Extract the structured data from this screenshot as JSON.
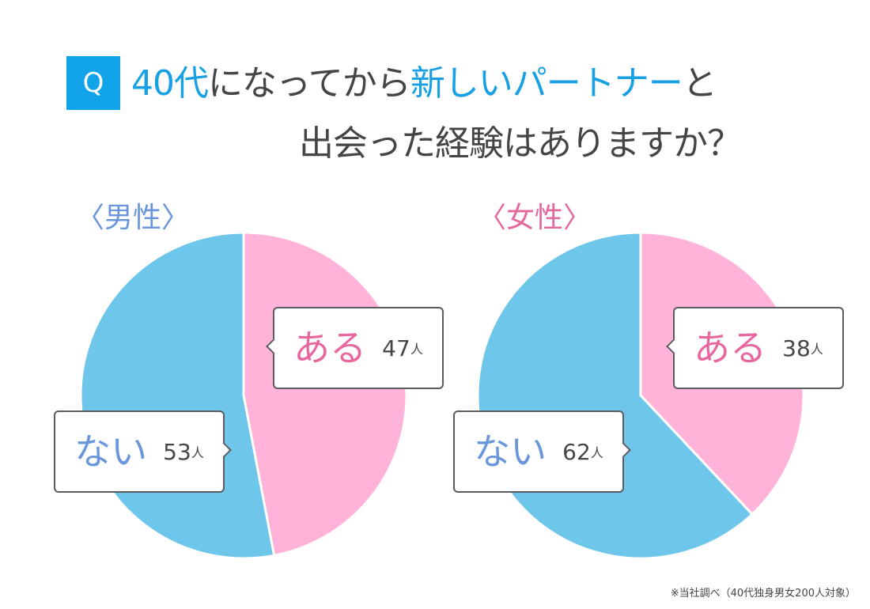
{
  "question": {
    "badge": "Q",
    "line1_parts": [
      {
        "text": "40代",
        "highlight": true
      },
      {
        "text": "になってから",
        "highlight": false
      },
      {
        "text": "新しいパートナー",
        "highlight": true
      },
      {
        "text": "と",
        "highlight": false
      }
    ],
    "line2": "出会った経験はありますか？"
  },
  "male": {
    "label": "〈男性〉",
    "yes": {
      "label": "ある",
      "count": "47",
      "unit": "人"
    },
    "no": {
      "label": "ない",
      "count": "53",
      "unit": "人"
    }
  },
  "female": {
    "label": "〈女性〉",
    "yes": {
      "label": "ある",
      "count": "38",
      "unit": "人"
    },
    "no": {
      "label": "ない",
      "count": "62",
      "unit": "人"
    }
  },
  "footnote": "※当社調べ（40代独身男女200人対象）",
  "colors": {
    "accent_blue": "#10a3ea",
    "yes_pink": "#ffb3d9",
    "no_blue": "#6ec6ea",
    "label_pink": "#e8679f",
    "label_blue": "#6a96dc",
    "text_dark": "#454548"
  },
  "chart_data": [
    {
      "type": "pie",
      "title": "〈男性〉",
      "categories": [
        "ある",
        "ない"
      ],
      "values": [
        47,
        53
      ],
      "unit": "人",
      "colors": [
        "#ffb3d9",
        "#6ec6ea"
      ]
    },
    {
      "type": "pie",
      "title": "〈女性〉",
      "categories": [
        "ある",
        "ない"
      ],
      "values": [
        38,
        62
      ],
      "unit": "人",
      "colors": [
        "#ffb3d9",
        "#6ec6ea"
      ]
    }
  ]
}
